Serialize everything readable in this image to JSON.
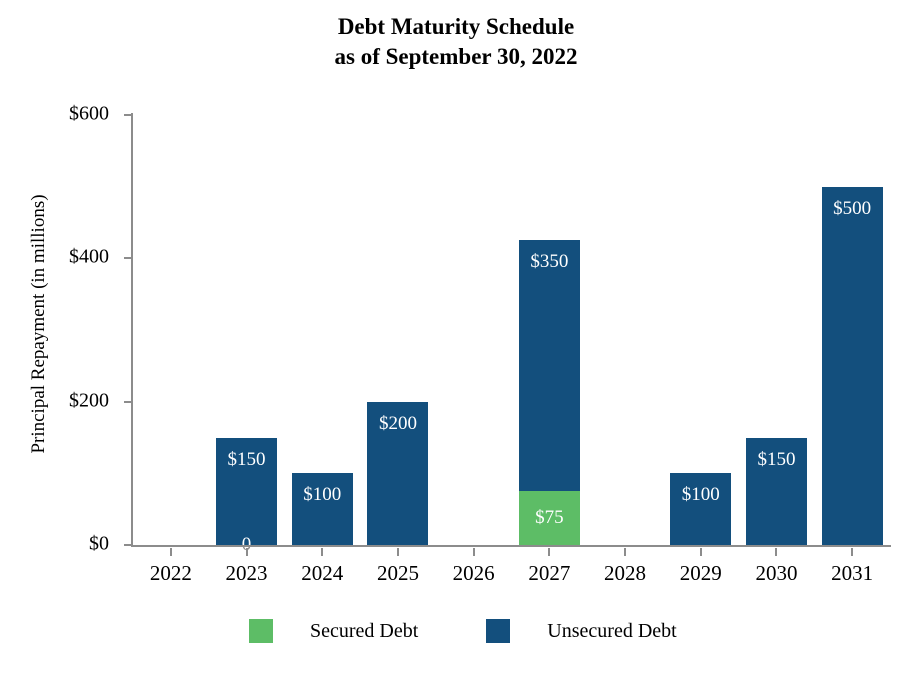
{
  "title": {
    "line1": "Debt Maturity Schedule",
    "line2": "as of September 30, 2022"
  },
  "chart_data": {
    "type": "bar",
    "stacked": true,
    "title": "Debt Maturity Schedule as of September 30, 2022",
    "ylabel": "Principal Repayment (in millions)",
    "xlabel": "",
    "categories": [
      "2022",
      "2023",
      "2024",
      "2025",
      "2026",
      "2027",
      "2028",
      "2029",
      "2030",
      "2031"
    ],
    "series": [
      {
        "name": "Secured Debt",
        "color_key": "secured",
        "values": [
          0,
          0,
          0,
          0,
          0,
          75,
          0,
          0,
          0,
          0
        ],
        "labels": [
          "",
          "",
          "",
          "",
          "",
          "$75",
          "",
          "",
          "",
          ""
        ]
      },
      {
        "name": "Unsecured Debt",
        "color_key": "unsecured",
        "values": [
          0,
          150,
          100,
          200,
          0,
          350,
          0,
          100,
          150,
          500
        ],
        "labels": [
          "",
          "$150",
          "$100",
          "$200",
          "",
          "$350",
          "",
          "$100",
          "$150",
          "$500"
        ]
      }
    ],
    "ylim": [
      0,
      600
    ],
    "yticks": [
      {
        "value": 0,
        "label": "$0"
      },
      {
        "value": 200,
        "label": "$200"
      },
      {
        "value": 400,
        "label": "$400"
      },
      {
        "value": 600,
        "label": "$600"
      }
    ],
    "grid": false,
    "legend_position": "bottom",
    "stray_zero_label": {
      "category": "2023",
      "text": "0"
    }
  },
  "legend": [
    {
      "label": "Secured Debt",
      "color": "#5dbd66"
    },
    {
      "label": "Unsecured Debt",
      "color": "#134f7d"
    }
  ],
  "colors": {
    "secured": "#5dbd66",
    "unsecured": "#134f7d",
    "axis": "#8c8c8c",
    "data_label": "#ffffff",
    "text": "#000000"
  }
}
